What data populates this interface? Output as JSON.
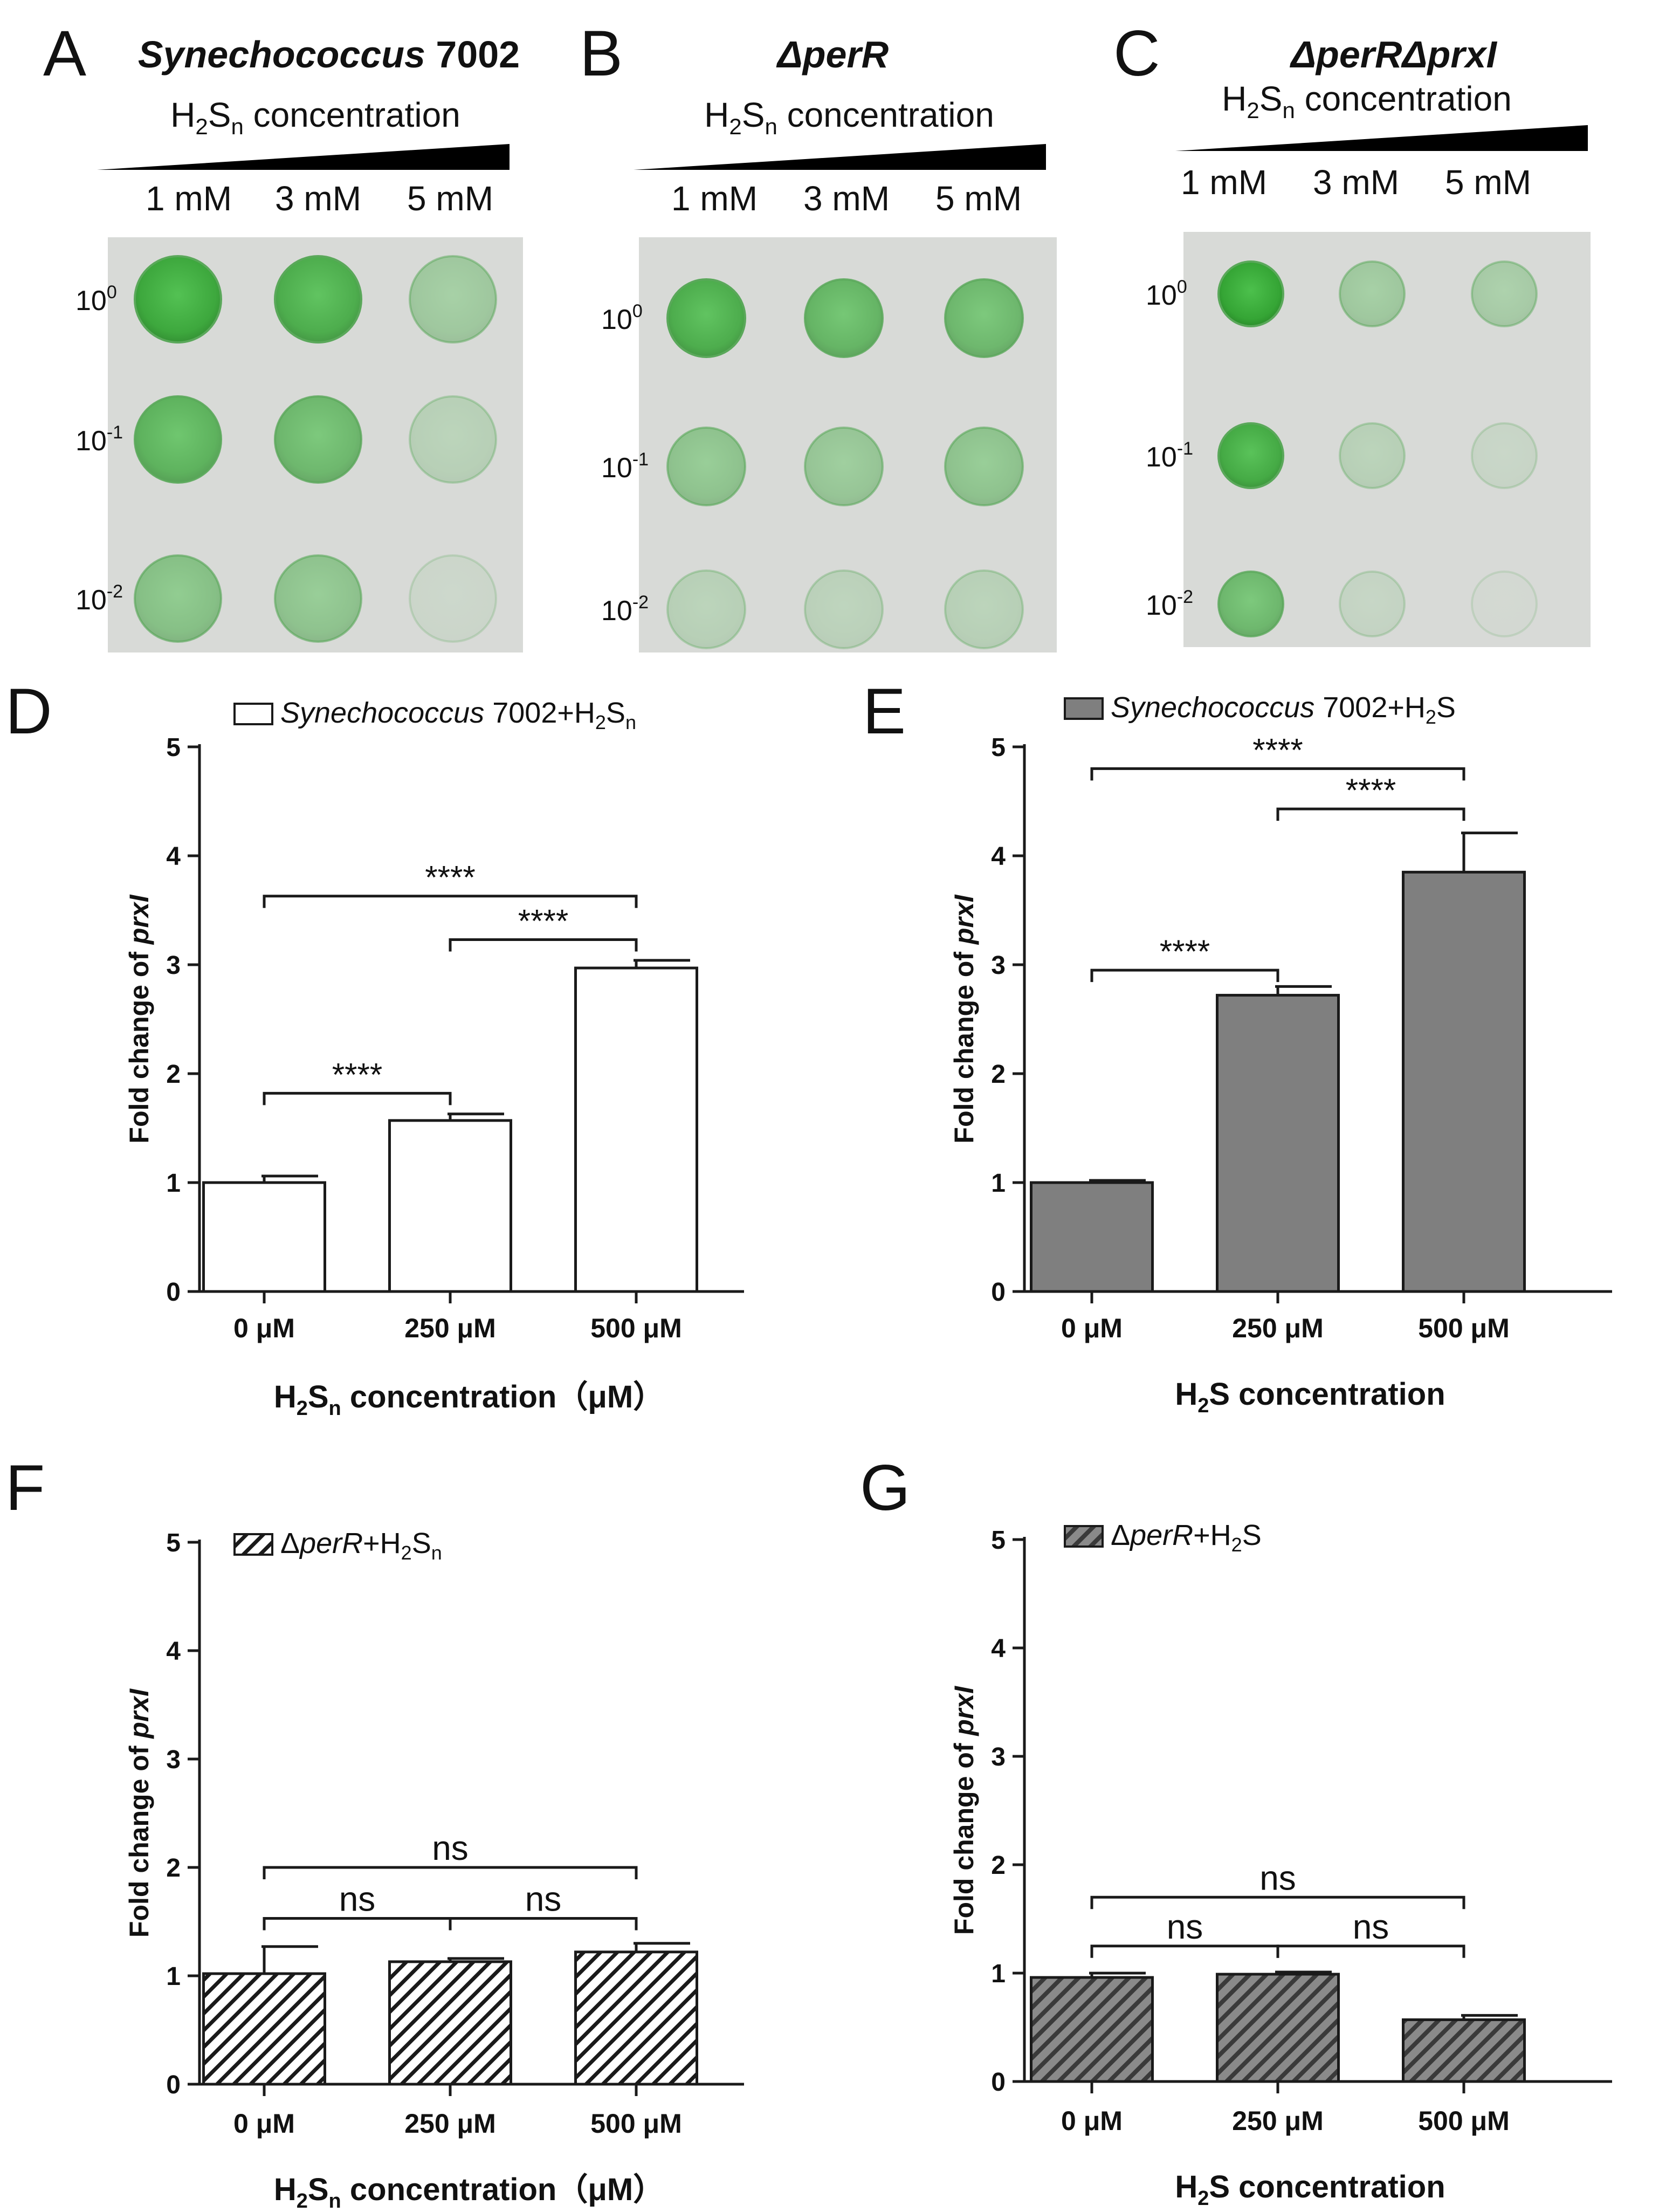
{
  "spot_panels": [
    {
      "letter": "A",
      "strain": "Synechococcus",
      "strain_suffix": " 7002",
      "conc_prefix": "H",
      "conc_sub1": "2",
      "conc_mid": "S",
      "conc_sub2": "n",
      "conc_rest": " concentration",
      "levels": [
        "1 mM",
        "3 mM",
        "5 mM"
      ],
      "dilutions": [
        {
          "base": "10",
          "exp": "0"
        },
        {
          "base": "10",
          "exp": "-1"
        },
        {
          "base": "10",
          "exp": "-2"
        }
      ],
      "growth": [
        [
          0.95,
          0.85,
          0.35
        ],
        [
          0.75,
          0.65,
          0.2
        ],
        [
          0.5,
          0.45,
          0.08
        ]
      ]
    },
    {
      "letter": "B",
      "strain": "ΔperR",
      "strain_suffix": "",
      "conc_prefix": "H",
      "conc_sub1": "2",
      "conc_mid": "S",
      "conc_sub2": "n",
      "conc_rest": " concentration",
      "levels": [
        "1 mM",
        "3 mM",
        "5 mM"
      ],
      "dilutions": [
        {
          "base": "10",
          "exp": "0"
        },
        {
          "base": "10",
          "exp": "-1"
        },
        {
          "base": "10",
          "exp": "-2"
        }
      ],
      "growth": [
        [
          0.85,
          0.7,
          0.65
        ],
        [
          0.45,
          0.4,
          0.45
        ],
        [
          0.2,
          0.18,
          0.2
        ]
      ]
    },
    {
      "letter": "C",
      "strain": "ΔperRΔprxI",
      "strain_suffix": "",
      "conc_prefix": "H",
      "conc_sub1": "2",
      "conc_mid": "S",
      "conc_sub2": "n",
      "conc_rest": " concentration",
      "levels": [
        "1 mM",
        "3 mM",
        "5 mM"
      ],
      "dilutions": [
        {
          "base": "10",
          "exp": "0"
        },
        {
          "base": "10",
          "exp": "-1"
        },
        {
          "base": "10",
          "exp": "-2"
        }
      ],
      "growth": [
        [
          1.0,
          0.35,
          0.3
        ],
        [
          0.9,
          0.2,
          0.1
        ],
        [
          0.65,
          0.12,
          0.03
        ]
      ]
    }
  ],
  "chart_data": [
    {
      "panel": "D",
      "type": "bar",
      "legend": {
        "italic": "Synechococcus",
        "plain": " 7002+H",
        "sub1": "2",
        "mid": "S",
        "sub2": "n"
      },
      "fill": "white",
      "ylabel": {
        "plain": "Fold change of ",
        "italic": "prxI"
      },
      "categories": [
        "0 μM",
        "250 μM",
        "500 μM"
      ],
      "values": [
        1.0,
        1.57,
        2.97
      ],
      "errors": [
        0.06,
        0.06,
        0.07
      ],
      "ylim": [
        0,
        5
      ],
      "yticks": [
        "0",
        "1",
        "2",
        "3",
        "4",
        "5"
      ],
      "xlabel": {
        "p1": "H",
        "s1": "2",
        "p2": "S",
        "s2": "n",
        "p3": " concentration（μM）"
      },
      "comparisons": [
        {
          "from": 0,
          "to": 1,
          "label": "****",
          "y": 1.82
        },
        {
          "from": 1,
          "to": 2,
          "label": "****",
          "y": 3.23
        },
        {
          "from": 0,
          "to": 2,
          "label": "****",
          "y": 3.63
        }
      ]
    },
    {
      "panel": "E",
      "type": "bar",
      "legend": {
        "italic": "Synechococcus",
        "plain": " 7002+H",
        "sub1": "2",
        "mid": "S",
        "sub2": ""
      },
      "fill": "solid",
      "ylabel": {
        "plain": "Fold change of ",
        "italic": "prxI"
      },
      "categories": [
        "0 μM",
        "250 μM",
        "500 μM"
      ],
      "values": [
        1.0,
        2.72,
        3.85
      ],
      "errors": [
        0.02,
        0.08,
        0.36
      ],
      "ylim": [
        0,
        5
      ],
      "yticks": [
        "0",
        "1",
        "2",
        "3",
        "4",
        "5"
      ],
      "xlabel": {
        "p1": "H",
        "s1": "2",
        "p2": "S",
        "s2": "",
        "p3": " concentration"
      },
      "comparisons": [
        {
          "from": 0,
          "to": 1,
          "label": "****",
          "y": 2.95
        },
        {
          "from": 1,
          "to": 2,
          "label": "****",
          "y": 4.43
        },
        {
          "from": 0,
          "to": 2,
          "label": "****",
          "y": 4.8
        }
      ]
    },
    {
      "panel": "F",
      "type": "bar",
      "legend": {
        "italic": "perR",
        "plain": "+H",
        "prefix": "Δ",
        "sub1": "2",
        "mid": "S",
        "sub2": "n"
      },
      "fill": "hatch",
      "ylabel": {
        "plain": "Fold change of ",
        "italic": "prxI"
      },
      "categories": [
        "0 μM",
        "250 μM",
        "500 μM"
      ],
      "values": [
        1.02,
        1.13,
        1.22
      ],
      "errors": [
        0.25,
        0.03,
        0.08
      ],
      "ylim": [
        0,
        5
      ],
      "yticks": [
        "0",
        "1",
        "2",
        "3",
        "4",
        "5"
      ],
      "xlabel": {
        "p1": "H",
        "s1": "2",
        "p2": "S",
        "s2": "n",
        "p3": " concentration（μM）"
      },
      "comparisons": [
        {
          "from": 0,
          "to": 1,
          "label": "ns",
          "y": 1.53
        },
        {
          "from": 1,
          "to": 2,
          "label": "ns",
          "y": 1.53
        },
        {
          "from": 0,
          "to": 2,
          "label": "ns",
          "y": 2.0
        }
      ]
    },
    {
      "panel": "G",
      "type": "bar",
      "legend": {
        "italic": "perR",
        "plain": "+H",
        "prefix": "Δ",
        "sub1": "2",
        "mid": "S",
        "sub2": ""
      },
      "fill": "hatch-dark",
      "ylabel": {
        "plain": "Fold change of ",
        "italic": "prxI"
      },
      "categories": [
        "0 μM",
        "250 μM",
        "500 μM"
      ],
      "values": [
        0.96,
        0.99,
        0.57
      ],
      "errors": [
        0.04,
        0.02,
        0.04
      ],
      "ylim": [
        0,
        5
      ],
      "yticks": [
        "0",
        "1",
        "2",
        "3",
        "4",
        "5"
      ],
      "xlabel": {
        "p1": "H",
        "s1": "2",
        "p2": "S",
        "s2": "",
        "p3": " concentration"
      },
      "comparisons": [
        {
          "from": 0,
          "to": 1,
          "label": "ns",
          "y": 1.25
        },
        {
          "from": 1,
          "to": 2,
          "label": "ns",
          "y": 1.25
        },
        {
          "from": 0,
          "to": 2,
          "label": "ns",
          "y": 1.7
        }
      ]
    }
  ],
  "colors": {
    "axis": "#1a1a1a",
    "plate_bg": "#d8dad7",
    "colony_green": "#3aa83a",
    "bar_gray": "#7f7f7f",
    "hatch_dark_bg": "#5a5a5a"
  }
}
